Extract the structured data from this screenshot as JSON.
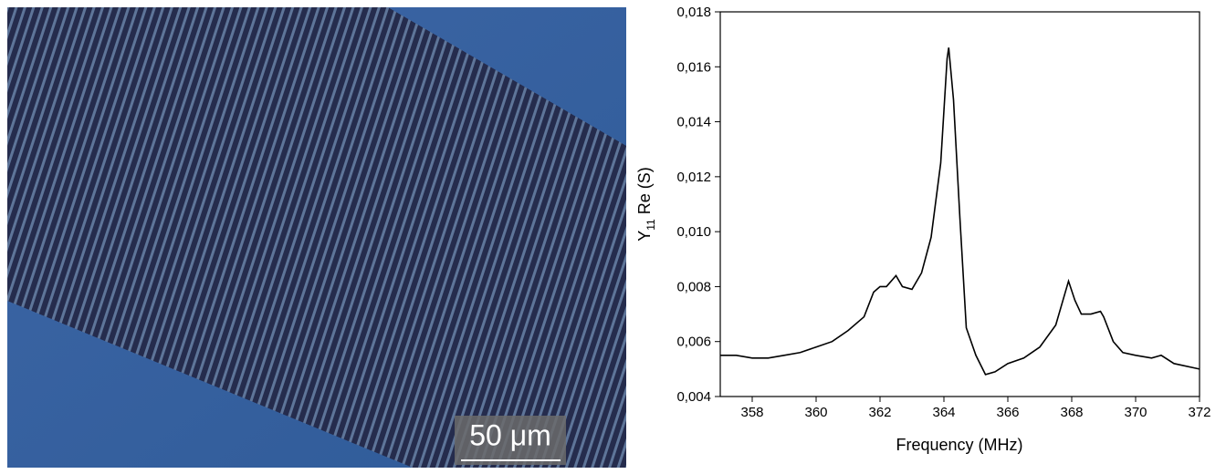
{
  "micrograph": {
    "scale_bar": "50 μm"
  },
  "chart_data": {
    "type": "line",
    "xlabel": "Frequency (MHz)",
    "ylabel_parts": [
      "Y",
      "11",
      " Re (S)"
    ],
    "xlim": [
      357,
      372
    ],
    "xticks": [
      358,
      360,
      362,
      364,
      366,
      368,
      370,
      372
    ],
    "ylim": [
      0.004,
      0.018
    ],
    "yticks": [
      {
        "value": 0.004,
        "label": "0,004"
      },
      {
        "value": 0.006,
        "label": "0,006"
      },
      {
        "value": 0.008,
        "label": "0,008"
      },
      {
        "value": 0.01,
        "label": "0,010"
      },
      {
        "value": 0.012,
        "label": "0,012"
      },
      {
        "value": 0.014,
        "label": "0,014"
      },
      {
        "value": 0.016,
        "label": "0,016"
      },
      {
        "value": 0.018,
        "label": "0,018"
      }
    ],
    "series": [
      {
        "color": "#000000",
        "x": [
          357,
          357.5,
          358,
          358.5,
          359,
          359.5,
          360,
          360.5,
          361,
          361.5,
          361.8,
          362,
          362.2,
          362.5,
          362.7,
          363,
          363.3,
          363.6,
          363.9,
          364.1,
          364.15,
          364.3,
          364.5,
          364.7,
          365,
          365.3,
          365.6,
          366,
          366.5,
          367,
          367.5,
          367.8,
          367.9,
          368.1,
          368.3,
          368.6,
          368.9,
          369,
          369.3,
          369.6,
          370,
          370.5,
          370.8,
          371.2,
          372
        ],
        "values": [
          0.0055,
          0.0055,
          0.0054,
          0.0054,
          0.0055,
          0.0056,
          0.0058,
          0.006,
          0.0064,
          0.0069,
          0.0078,
          0.008,
          0.008,
          0.0084,
          0.008,
          0.0079,
          0.0085,
          0.0098,
          0.0125,
          0.0163,
          0.0167,
          0.0148,
          0.0105,
          0.0065,
          0.0055,
          0.0048,
          0.0049,
          0.0052,
          0.0054,
          0.0058,
          0.0066,
          0.0078,
          0.0082,
          0.0075,
          0.007,
          0.007,
          0.0071,
          0.0069,
          0.006,
          0.0056,
          0.0055,
          0.0054,
          0.0055,
          0.0052,
          0.005
        ]
      }
    ]
  }
}
